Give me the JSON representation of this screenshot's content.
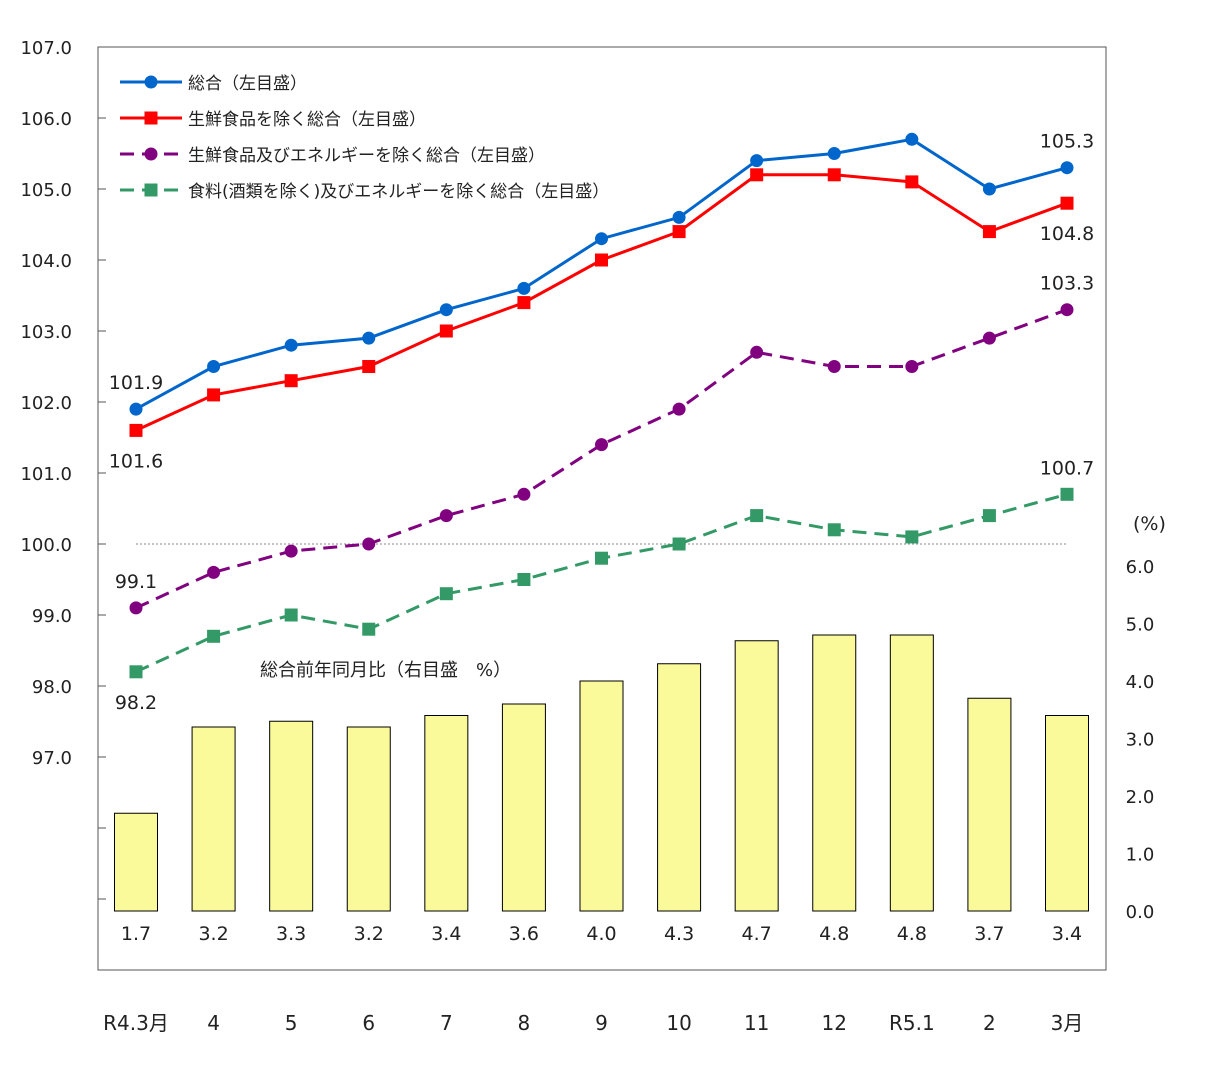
{
  "chart_data": {
    "type": "line+bar",
    "categories": [
      "R4.3月",
      "4",
      "5",
      "6",
      "7",
      "8",
      "9",
      "10",
      "11",
      "12",
      "R5.1",
      "2",
      "3月"
    ],
    "left_axis": {
      "ylim": [
        95.0,
        107.0
      ],
      "ticks": [
        "107.0",
        "106.0",
        "105.0",
        "104.0",
        "103.0",
        "102.0",
        "101.0",
        "100.0",
        "99.0",
        "98.0",
        "97.0",
        "",
        ""
      ],
      "tick_values": [
        107,
        106,
        105,
        104,
        103,
        102,
        101,
        100,
        99,
        98,
        97,
        96,
        95
      ]
    },
    "right_axis": {
      "label": "(%)",
      "ylim": [
        0,
        6.0
      ],
      "ticks": [
        "6.0",
        "5.0",
        "4.0",
        "3.0",
        "2.0",
        "1.0",
        "0.0"
      ],
      "tick_values": [
        6,
        5,
        4,
        3,
        2,
        1,
        0
      ]
    },
    "reference_line": 100.0,
    "grid": false,
    "legend_placement": "top-left",
    "series": [
      {
        "name": "総合（左目盛）",
        "kind": "line",
        "axis": "left",
        "color": "#0066CC",
        "marker": "circle",
        "dashed": false,
        "values": [
          101.9,
          102.5,
          102.8,
          102.9,
          103.3,
          103.6,
          104.3,
          104.6,
          105.4,
          105.5,
          105.7,
          105.0,
          105.3
        ],
        "labels": [
          {
            "index": 0,
            "text": "101.9",
            "pos": "above"
          },
          {
            "index": 12,
            "text": "105.3",
            "pos": "above"
          }
        ]
      },
      {
        "name": "生鮮食品を除く総合（左目盛）",
        "kind": "line",
        "axis": "left",
        "color": "#FF0000",
        "marker": "square",
        "dashed": false,
        "values": [
          101.6,
          102.1,
          102.3,
          102.5,
          103.0,
          103.4,
          104.0,
          104.4,
          105.2,
          105.2,
          105.1,
          104.4,
          104.8
        ],
        "labels": [
          {
            "index": 0,
            "text": "101.6",
            "pos": "below"
          },
          {
            "index": 12,
            "text": "104.8",
            "pos": "below"
          }
        ]
      },
      {
        "name": "生鮮食品及びエネルギーを除く総合（左目盛）",
        "kind": "line",
        "axis": "left",
        "color": "#800080",
        "marker": "circle",
        "dashed": true,
        "values": [
          99.1,
          99.6,
          99.9,
          100.0,
          100.4,
          100.7,
          101.4,
          101.9,
          102.7,
          102.5,
          102.5,
          102.9,
          103.3
        ],
        "labels": [
          {
            "index": 0,
            "text": "99.1",
            "pos": "above"
          },
          {
            "index": 12,
            "text": "103.3",
            "pos": "above"
          }
        ]
      },
      {
        "name": "食料(酒類を除く)及びエネルギーを除く総合（左目盛）",
        "kind": "line",
        "axis": "left",
        "color": "#339966",
        "marker": "square",
        "dashed": true,
        "values": [
          98.2,
          98.7,
          99.0,
          98.8,
          99.3,
          99.5,
          99.8,
          100.0,
          100.4,
          100.2,
          100.1,
          100.4,
          100.7
        ],
        "labels": [
          {
            "index": 0,
            "text": "98.2",
            "pos": "below"
          },
          {
            "index": 12,
            "text": "100.7",
            "pos": "above"
          }
        ]
      }
    ],
    "bars": {
      "name": "総合前年同月比（右目盛　%）",
      "axis": "right",
      "color": "#FAFA9B",
      "edge": "#000000",
      "values": [
        1.7,
        3.2,
        3.3,
        3.2,
        3.4,
        3.6,
        4.0,
        4.3,
        4.7,
        4.8,
        4.8,
        3.7,
        3.4
      ],
      "labels": [
        "1.7",
        "3.2",
        "3.3",
        "3.2",
        "3.4",
        "3.6",
        "4.0",
        "4.3",
        "4.7",
        "4.8",
        "4.8",
        "3.7",
        "3.4"
      ]
    }
  }
}
